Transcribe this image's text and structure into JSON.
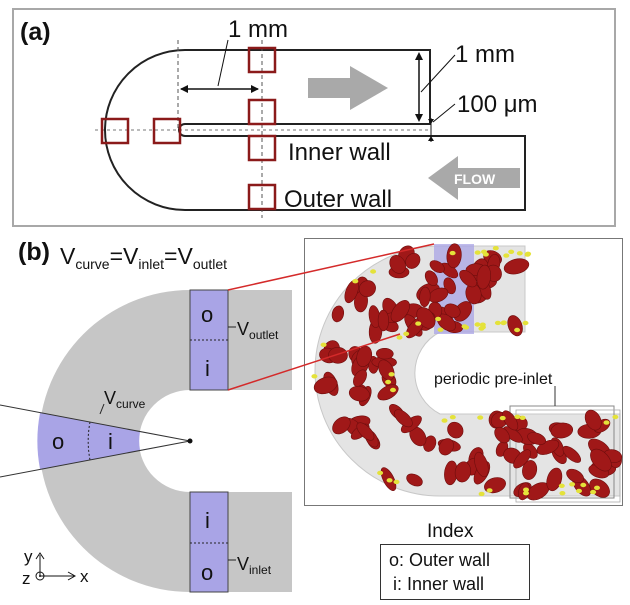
{
  "panel_a": {
    "label": "(a)",
    "dim_length": "1 mm",
    "dim_width": "1 mm",
    "dim_gap": "100 μm",
    "inner_wall": "Inner wall",
    "outer_wall": "Outer wall",
    "flow_label": "FLOW"
  },
  "panel_b": {
    "label": "(b)",
    "equation": {
      "v1": "V",
      "s1": "curve",
      "eq1": "=",
      "v2": "V",
      "s2": "inlet",
      "eq2": "=",
      "v3": "V",
      "s3": "outlet"
    },
    "curve_label": {
      "v": "V",
      "sub": "curve"
    },
    "outlet_label": {
      "v": "V",
      "sub": "outlet"
    },
    "inlet_label": {
      "v": "V",
      "sub": "inlet"
    },
    "o_label": "o",
    "i_label": "i",
    "pre_inlet": "periodic pre-inlet",
    "axis_x": "x",
    "axis_y": "y",
    "axis_z": "z",
    "index_title": "Index",
    "index_items": [
      "o: Outer wall",
      "i: Inner wall"
    ]
  },
  "colors": {
    "channel_gray": "#c6c6c6",
    "region_blue": "#a9a4e6",
    "box_red": "#8b1a1a",
    "rbc_red": "#a01818",
    "platelet_yellow": "#e4e23a",
    "arrow_gray": "#a9a9a9"
  }
}
